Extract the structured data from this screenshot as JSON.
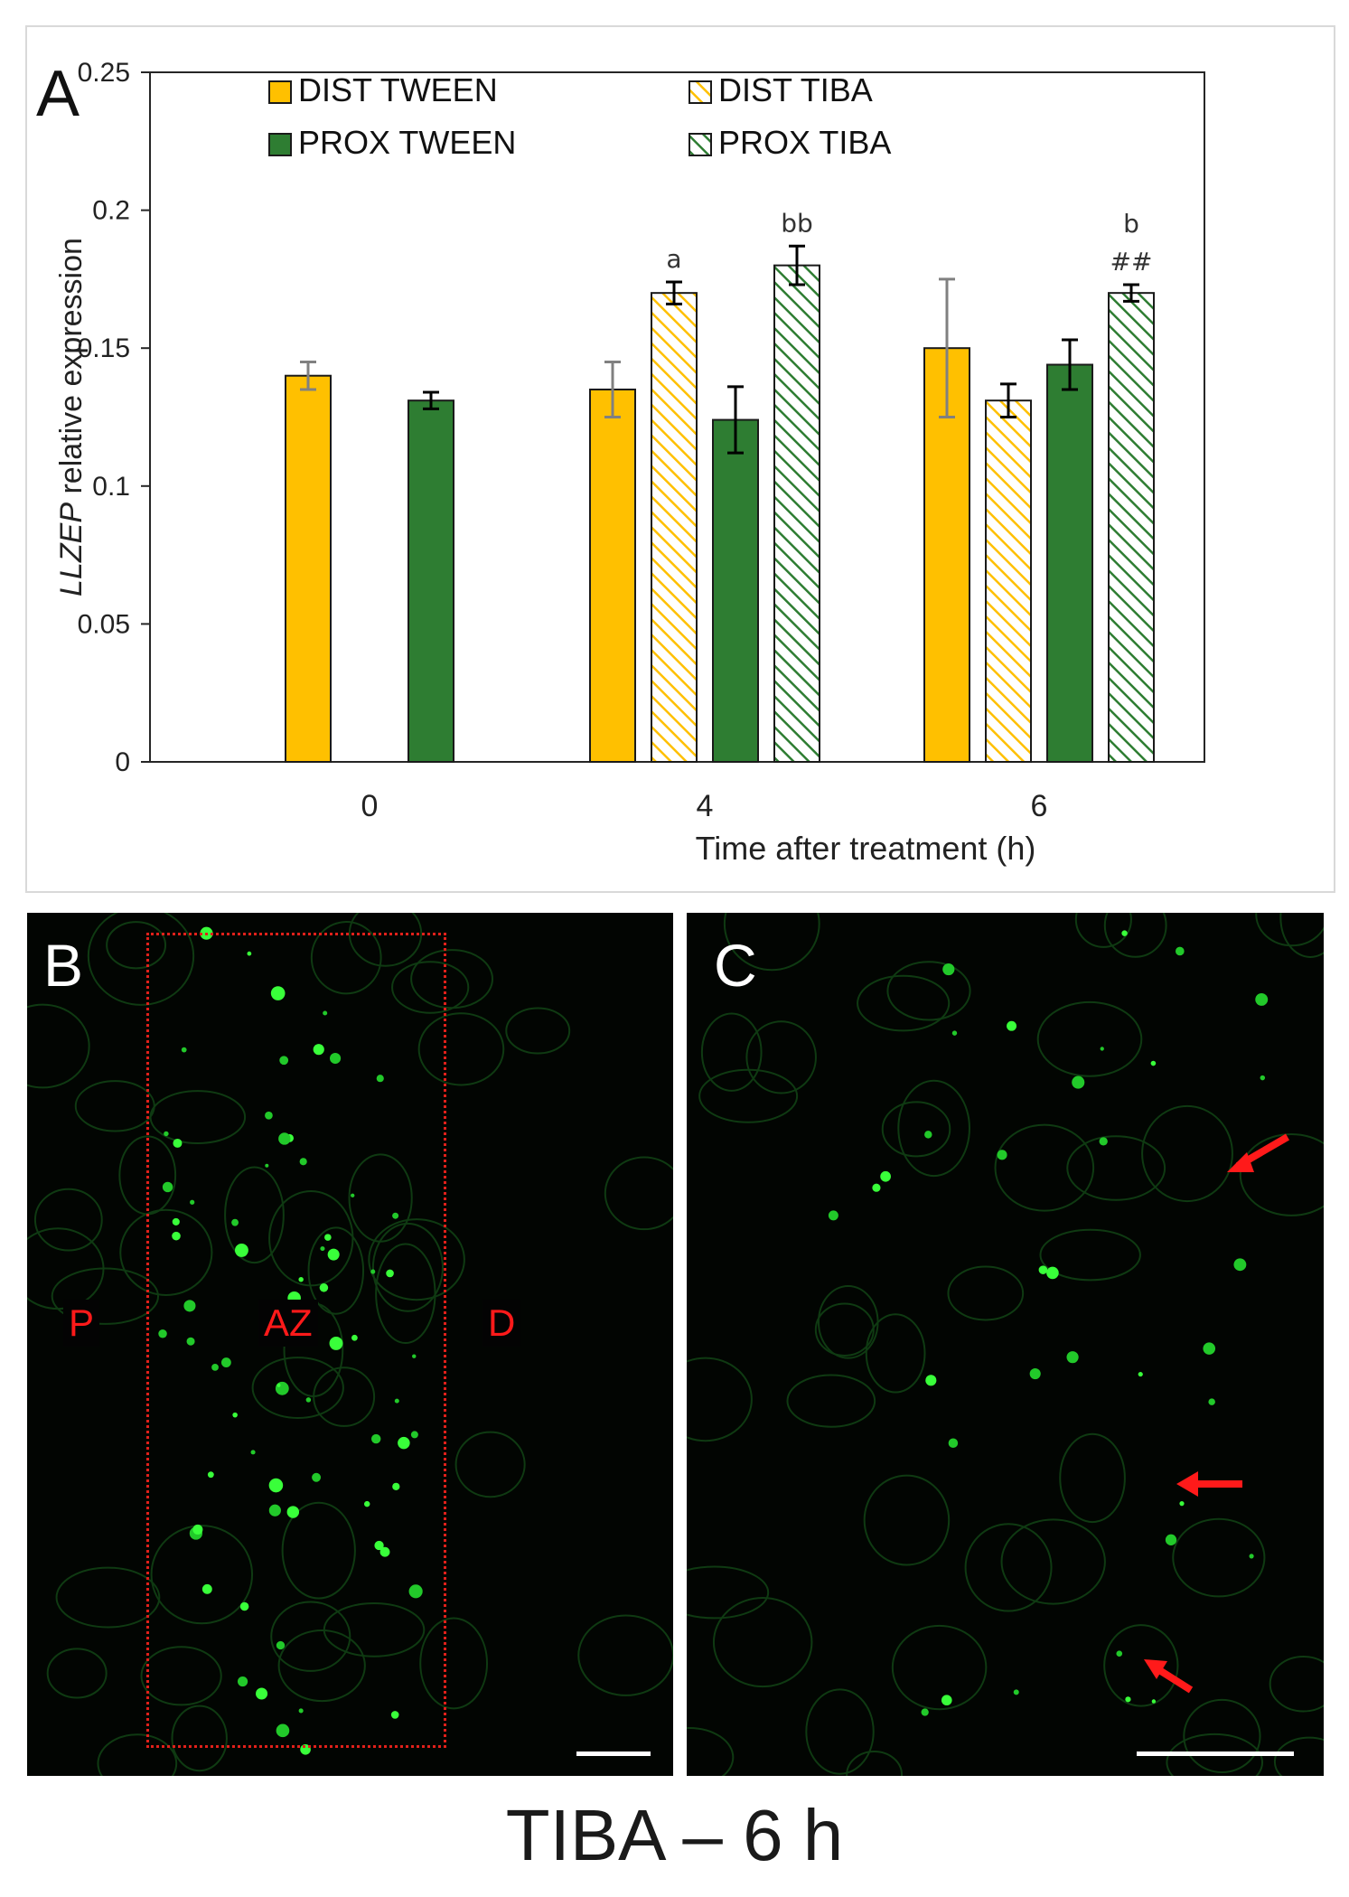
{
  "panels": {
    "a_letter": "A",
    "b_letter": "B",
    "c_letter": "C",
    "region_p": "P",
    "region_az": "AZ",
    "region_d": "D"
  },
  "caption": "TIBA – 6 h",
  "colors": {
    "dist": "#ffc000",
    "prox": "#2e7d32",
    "arrow": "#ff1a1a",
    "az_box": "#e0201a",
    "micro_bg": "#020502",
    "fluor": "#39ff3a"
  },
  "chart_data": {
    "type": "bar",
    "title": "",
    "xlabel": "Time after treatment (h)",
    "ylabel_italic": "LLZEP",
    "ylabel_rest": " relative expression",
    "ylim": [
      0,
      0.25
    ],
    "yticks": [
      0,
      0.05,
      0.1,
      0.15,
      0.2,
      0.25
    ],
    "ytick_labels": [
      "0",
      "0.05",
      "0.1",
      "0.15",
      "0.2",
      "0.25"
    ],
    "categories": [
      "0",
      "4",
      "6"
    ],
    "legend_position": "top",
    "series": [
      {
        "name": "DIST TWEEN",
        "pattern": "solid",
        "color": "#ffc000",
        "values": [
          0.14,
          0.135,
          0.15
        ],
        "errors": [
          0.005,
          0.01,
          0.025
        ],
        "error_colors": [
          "#808080",
          "#808080",
          "#808080"
        ]
      },
      {
        "name": "DIST TIBA",
        "pattern": "hatched",
        "color": "#ffc000",
        "values": [
          null,
          0.17,
          0.131
        ],
        "errors": [
          null,
          0.004,
          0.006
        ],
        "error_colors": [
          null,
          "#000000",
          "#000000"
        ]
      },
      {
        "name": "PROX TWEEN",
        "pattern": "solid",
        "color": "#2e7d32",
        "values": [
          0.131,
          0.124,
          0.144
        ],
        "errors": [
          0.003,
          0.012,
          0.009
        ],
        "error_colors": [
          "#000000",
          "#000000",
          "#000000"
        ]
      },
      {
        "name": "PROX TIBA",
        "pattern": "hatched",
        "color": "#2e7d32",
        "values": [
          null,
          0.18,
          0.17
        ],
        "errors": [
          null,
          0.007,
          0.003
        ],
        "error_colors": [
          null,
          "#000000",
          "#000000"
        ]
      }
    ],
    "annotations": [
      {
        "text": "a",
        "category": "4",
        "series": "DIST TIBA"
      },
      {
        "text": "bb",
        "category": "4",
        "series": "PROX TIBA"
      },
      {
        "text": "b",
        "category": "6",
        "series": "PROX TIBA",
        "line": 1
      },
      {
        "text": "##",
        "category": "6",
        "series": "PROX TIBA",
        "line": 2
      }
    ]
  }
}
